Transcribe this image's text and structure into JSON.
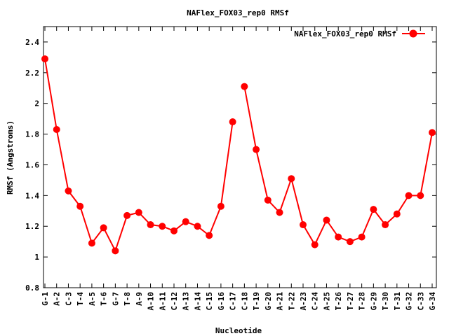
{
  "chart_data": {
    "type": "line",
    "title": "NAFlex_FOX03_rep0 RMSf",
    "xlabel": "Nucleotide",
    "ylabel": "RMSf (Angstroms)",
    "ylim": [
      0.8,
      2.5
    ],
    "yticks": [
      0.8,
      1,
      1.2,
      1.4,
      1.6,
      1.8,
      2,
      2.2,
      2.4
    ],
    "ytick_labels": [
      "0.8",
      "1",
      "1.2",
      "1.4",
      "1.6",
      "1.8",
      "2",
      "2.2",
      "2.4"
    ],
    "grid": false,
    "legend_position": "top-right",
    "line_color": "#ff0000",
    "categories": [
      "G-1",
      "A-2",
      "C-3",
      "T-4",
      "A-5",
      "T-6",
      "G-7",
      "T-8",
      "A-9",
      "A-10",
      "A-11",
      "C-12",
      "A-13",
      "A-14",
      "C-15",
      "G-16",
      "C-17",
      "C-18",
      "T-19",
      "G-20",
      "A-21",
      "T-22",
      "A-23",
      "C-24",
      "A-25",
      "T-26",
      "T-27",
      "T-28",
      "G-29",
      "T-30",
      "T-31",
      "G-32",
      "C-33",
      "G-34"
    ],
    "series": [
      {
        "name": "NAFlex_FOX03_rep0 RMSf",
        "segments": [
          {
            "categories": [
              "G-1",
              "A-2",
              "C-3",
              "T-4",
              "A-5",
              "T-6",
              "G-7",
              "T-8",
              "A-9",
              "A-10",
              "A-11",
              "C-12",
              "A-13",
              "A-14",
              "C-15",
              "G-16",
              "C-17"
            ],
            "values": [
              2.29,
              1.83,
              1.43,
              1.33,
              1.09,
              1.19,
              1.04,
              1.27,
              1.29,
              1.21,
              1.2,
              1.17,
              1.23,
              1.2,
              1.14,
              1.33,
              1.88
            ]
          },
          {
            "categories": [
              "C-18",
              "T-19",
              "G-20",
              "A-21",
              "T-22",
              "A-23",
              "C-24",
              "A-25",
              "T-26",
              "T-27",
              "T-28",
              "G-29",
              "T-30",
              "T-31",
              "G-32",
              "C-33",
              "G-34"
            ],
            "values": [
              2.11,
              1.7,
              1.37,
              1.29,
              1.51,
              1.21,
              1.08,
              1.24,
              1.13,
              1.1,
              1.13,
              1.31,
              1.21,
              1.28,
              1.4,
              1.4,
              1.81
            ]
          }
        ]
      }
    ]
  }
}
